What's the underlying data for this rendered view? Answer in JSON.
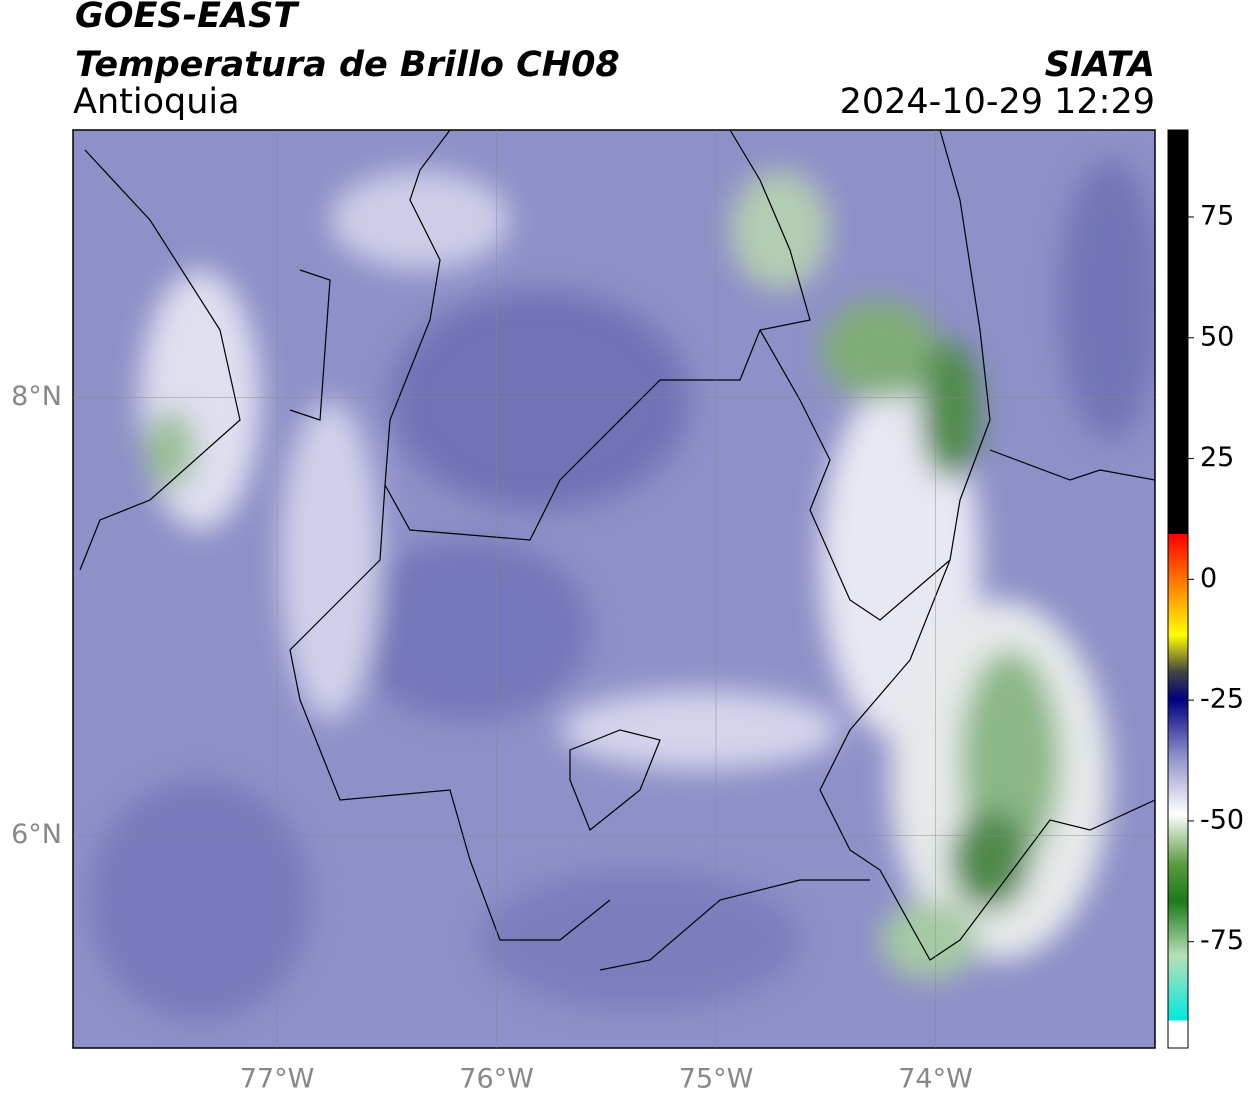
{
  "header": {
    "title": "GOES-EAST",
    "subtitle": "Temperatura de Brillo CH08",
    "region": "Antioquia",
    "source": "SIATA",
    "datetime": "2024-10-29 12:29"
  },
  "map": {
    "xlim": [
      -77.93,
      -73
    ],
    "ylim": [
      5.03,
      9.22
    ],
    "xticks": [
      {
        "value": -77,
        "label": "77°W"
      },
      {
        "value": -76,
        "label": "76°W"
      },
      {
        "value": -75,
        "label": "75°W"
      },
      {
        "value": -74,
        "label": "74°W"
      }
    ],
    "yticks": [
      {
        "value": 6,
        "label": "6°N"
      },
      {
        "value": 8,
        "label": "8°N"
      }
    ],
    "grid": true
  },
  "colorbar": {
    "lim": [
      -97,
      93
    ],
    "ticks": [
      75,
      50,
      25,
      0,
      -25,
      -50,
      -75
    ]
  }
}
